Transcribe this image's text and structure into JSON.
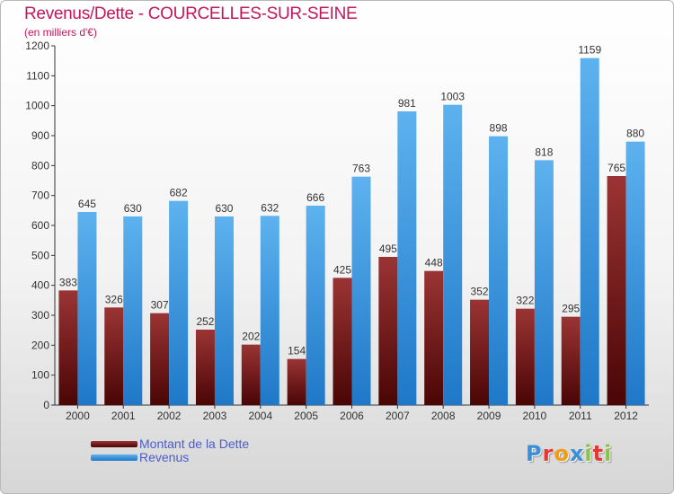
{
  "title": "Revenus/Dette - COURCELLES-SUR-SEINE",
  "subtitle": "(en milliers d'€)",
  "brand": {
    "text": "Proxiti",
    "letter_colors": [
      "#3b8fd8",
      "#e53935",
      "#f39c12",
      "#3b8fd8",
      "#8bc34a",
      "#e53935",
      "#8bc34a"
    ]
  },
  "chart_data": {
    "type": "bar",
    "categories": [
      "2000",
      "2001",
      "2002",
      "2003",
      "2004",
      "2005",
      "2006",
      "2007",
      "2008",
      "2009",
      "2010",
      "2011",
      "2012"
    ],
    "series": [
      {
        "name": "Montant de la Dette",
        "color": "#7a1a1a",
        "values": [
          383,
          326,
          307,
          252,
          202,
          154,
          425,
          495,
          448,
          352,
          322,
          295,
          765
        ]
      },
      {
        "name": "Revenus",
        "color": "#3d9be0",
        "values": [
          645,
          630,
          682,
          630,
          632,
          666,
          763,
          981,
          1003,
          898,
          818,
          1159,
          880
        ]
      }
    ],
    "y_ticks": [
      0,
      100,
      200,
      300,
      400,
      500,
      600,
      700,
      800,
      900,
      1000,
      1100,
      1200
    ],
    "ylim": [
      0,
      1200
    ],
    "grid": false,
    "legend_position": "bottom-left"
  }
}
